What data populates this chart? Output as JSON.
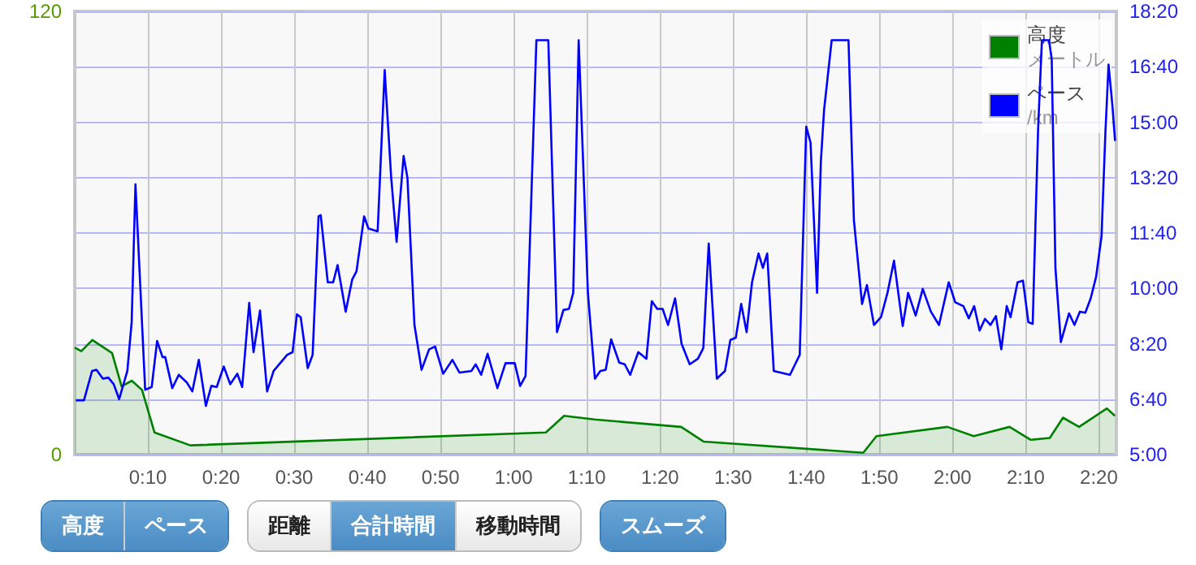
{
  "chart_data": {
    "type": "line",
    "xlim": [
      0,
      142.4
    ],
    "xticks": [
      {
        "value": 10,
        "label": "0:10"
      },
      {
        "value": 20,
        "label": "0:20"
      },
      {
        "value": 30,
        "label": "0:30"
      },
      {
        "value": 40,
        "label": "0:40"
      },
      {
        "value": 50,
        "label": "0:50"
      },
      {
        "value": 60,
        "label": "1:00"
      },
      {
        "value": 70,
        "label": "1:10"
      },
      {
        "value": 80,
        "label": "1:20"
      },
      {
        "value": 90,
        "label": "1:30"
      },
      {
        "value": 100,
        "label": "1:40"
      },
      {
        "value": 110,
        "label": "1:50"
      },
      {
        "value": 120,
        "label": "2:00"
      },
      {
        "value": 130,
        "label": "2:10"
      },
      {
        "value": 140,
        "label": "2:20"
      }
    ],
    "ylim": [
      0,
      120
    ],
    "yticks": [
      0,
      120
    ],
    "y2lim": [
      300,
      1100
    ],
    "y2ticks": [
      {
        "value": 300,
        "label": "5:00"
      },
      {
        "value": 400,
        "label": "6:40"
      },
      {
        "value": 500,
        "label": "8:20"
      },
      {
        "value": 600,
        "label": "10:00"
      },
      {
        "value": 700,
        "label": "11:40"
      },
      {
        "value": 800,
        "label": "13:20"
      },
      {
        "value": 900,
        "label": "15:00"
      },
      {
        "value": 1000,
        "label": "16:40"
      },
      {
        "value": 1100,
        "label": "18:20"
      }
    ],
    "grid": true,
    "legend": "top right",
    "annotations": [
      "高度",
      "ペース",
      "距離",
      "合計時間",
      "移動時間",
      "スムーズ"
    ],
    "series": [
      {
        "name": "高度メートル",
        "type": "area",
        "color": "#008000",
        "x": [
          0,
          0.9,
          2.4,
          5.1,
          6.4,
          7.8,
          9.2,
          10.9,
          15.8,
          64.4,
          66.9,
          71.1,
          82.9,
          86,
          107.8,
          109.6,
          119.3,
          122.9,
          127.8,
          130.7,
          133.3,
          135.1,
          137.3,
          141.1,
          142.2
        ],
        "values": [
          29,
          28,
          31,
          27.5,
          18.5,
          20,
          17.5,
          6,
          2.5,
          6,
          10.5,
          9.5,
          7.5,
          3.5,
          0.5,
          5,
          7.5,
          5,
          7.5,
          4,
          4.5,
          10,
          7.5,
          12.5,
          10.5
        ]
      },
      {
        "name": "ペース/km",
        "type": "line",
        "axis": "y2",
        "color": "#0000ff",
        "x": [
          0.15,
          1.26,
          2.37,
          2.96,
          3.85,
          4.59,
          5.33,
          6.07,
          7.19,
          7.78,
          8.3,
          9.19,
          9.63,
          10.52,
          11.26,
          12,
          12.37,
          13.33,
          14.22,
          15.33,
          16.07,
          16.96,
          17.93,
          18.67,
          19.41,
          20.37,
          21.26,
          22.22,
          22.89,
          23.85,
          24.44,
          25.33,
          26.3,
          27.19,
          29.04,
          29.78,
          30.37,
          30.89,
          31.85,
          32.52,
          33.33,
          33.63,
          34.59,
          35.33,
          35.93,
          37.04,
          37.93,
          38.52,
          39.56,
          40.15,
          41.41,
          42.37,
          43.26,
          44,
          44.96,
          45.48,
          46.44,
          47.41,
          48.44,
          49.26,
          50.37,
          51.63,
          52.59,
          54.22,
          54.81,
          55.56,
          56.44,
          57.78,
          58.89,
          60.15,
          60.89,
          61.63,
          63.11,
          64.74,
          65.93,
          66.81,
          67.56,
          68.15,
          68.89,
          70.15,
          71.11,
          71.85,
          72.59,
          73.33,
          74.44,
          75.19,
          75.93,
          77.04,
          78.15,
          78.89,
          79.63,
          80.37,
          81.11,
          82.07,
          82.96,
          84.07,
          85.19,
          85.93,
          86.67,
          87.78,
          88.89,
          89.63,
          90.37,
          91.11,
          91.85,
          92.59,
          93.48,
          94.07,
          94.67,
          95.56,
          97.78,
          99.11,
          100,
          100.59,
          101.48,
          102,
          102.44,
          103.48,
          105.78,
          106.52,
          107.63,
          108.3,
          109.26,
          110.22,
          111.11,
          112,
          113.19,
          113.93,
          114.96,
          115.93,
          117.04,
          118.15,
          119.48,
          120.37,
          121.48,
          122.22,
          122.96,
          123.7,
          124.44,
          125.19,
          125.93,
          126.67,
          127.41,
          127.93,
          128.89,
          129.63,
          130.37,
          130.96,
          131.7,
          132.22,
          133.19,
          133.56,
          134.07,
          134.81,
          135.93,
          136.67,
          137.41,
          138.15,
          138.89,
          139.63,
          140.37,
          140.89,
          141.33,
          141.85,
          142.22
        ],
        "values": [
          398,
          398,
          451,
          453,
          437,
          439,
          427,
          400,
          451,
          539,
          788,
          539,
          417,
          422,
          505,
          476,
          476,
          420,
          444,
          430,
          414,
          471,
          388,
          424,
          422,
          459,
          427,
          446,
          422,
          574,
          485,
          560,
          414,
          451,
          480,
          485,
          553,
          548,
          456,
          480,
          730,
          732,
          611,
          611,
          642,
          558,
          616,
          631,
          730,
          708,
          703,
          994,
          800,
          684,
          839,
          800,
          534,
          453,
          490,
          495,
          446,
          471,
          448,
          451,
          463,
          444,
          482,
          420,
          465,
          465,
          424,
          442,
          1048,
          1048,
          521,
          561,
          563,
          592,
          1048,
          592,
          437,
          451,
          453,
          508,
          466,
          463,
          444,
          485,
          473,
          577,
          563,
          563,
          534,
          582,
          500,
          463,
          473,
          492,
          681,
          437,
          451,
          507,
          511,
          572,
          521,
          611,
          663,
          637,
          663,
          451,
          444,
          480,
          892,
          863,
          592,
          829,
          922,
          1048,
          1048,
          723,
          572,
          606,
          534,
          548,
          592,
          650,
          532,
          592,
          551,
          599,
          558,
          534,
          611,
          575,
          568,
          546,
          568,
          524,
          545,
          534,
          550,
          490,
          568,
          548,
          611,
          614,
          539,
          536,
          888,
          1048,
          1048,
          1014,
          636,
          503,
          555,
          534,
          558,
          556,
          582,
          621,
          694,
          878,
          1004,
          931,
          866
        ]
      }
    ]
  }
}
